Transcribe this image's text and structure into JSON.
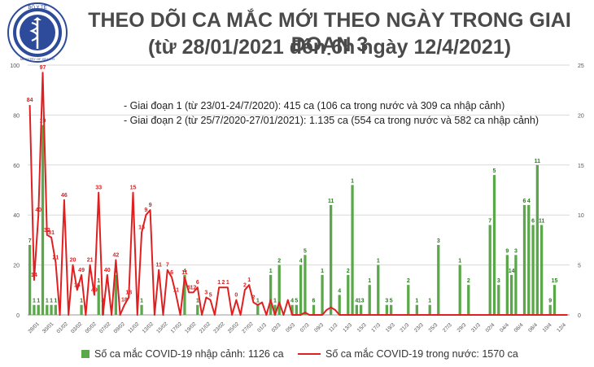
{
  "header": {
    "title": "THEO DÕI CA MẮC MỚI THEO NGÀY TRONG GIAI ĐOẠN 3",
    "subtitle": "(từ 28/01/2021 đến 6h ngày 12/4/2021)",
    "logo_text": "BỘ Y TẾ",
    "logo_subtext": "MINISTRY OF HEALTH"
  },
  "notes": [
    "- Giai đoạn 1 (từ 23/01-24/7/2020): 415 ca (106 ca trong nước và 309 ca nhập cảnh)",
    "- Giai đoạn 2 (từ 25/7/2020-27/01/2021): 1.135 ca (554 ca trong nước và 582 ca nhập cảnh)"
  ],
  "legend": {
    "bar_label": "Số ca mắc COVID-19 nhập cảnh: 1126 ca",
    "line_label": "Số ca mắc COVID-19 trong nước: 1570 ca"
  },
  "colors": {
    "bar": "#5aa84a",
    "line": "#e02020",
    "text": "#4a4a4a",
    "grid": "#d9d9d9"
  },
  "chart_data": {
    "type": "bar+line",
    "grid": true,
    "ylim_left": [
      0,
      100
    ],
    "yticks_left": [
      0,
      20,
      40,
      60,
      80,
      100
    ],
    "ylim_right": [
      0,
      25
    ],
    "yticks_right": [
      0,
      5,
      10,
      15,
      20,
      25
    ],
    "start_date": "28/01",
    "xtick_labels": [
      "28/01",
      "30/01",
      "01/02",
      "03/02",
      "05/02",
      "07/02",
      "09/02",
      "11/02",
      "13/02",
      "15/02",
      "17/02",
      "19/02",
      "21/02",
      "23/02",
      "25/02",
      "27/02",
      "01/3",
      "03/3",
      "05/3",
      "07/3",
      "09/3",
      "11/3",
      "13/3",
      "15/3",
      "17/3",
      "19/3",
      "21/3",
      "23/3",
      "25/3",
      "27/3",
      "29/3",
      "31/3",
      "02/4",
      "04/4",
      "06/4",
      "08/4",
      "10/4",
      "12/4"
    ],
    "series": [
      {
        "name": "Số ca mắc COVID-19 nhập cảnh: 1126 ca",
        "type": "bar",
        "axis": "right",
        "values": [
          7,
          1,
          1,
          19,
          1,
          1,
          1,
          0,
          0,
          0,
          0,
          0,
          1,
          0,
          0,
          0,
          3,
          1,
          0,
          0,
          4,
          0,
          0,
          0,
          0,
          0,
          1,
          0,
          0,
          0,
          0,
          0,
          0,
          0,
          0,
          0,
          4,
          0,
          0,
          1,
          0,
          0,
          0,
          0,
          0,
          0,
          0,
          0,
          0,
          0,
          0,
          0,
          0,
          1,
          0,
          0,
          4,
          1,
          5,
          0,
          0,
          1,
          1,
          5,
          6,
          0,
          1,
          0,
          4,
          0,
          11,
          0,
          2,
          0,
          4,
          13,
          1,
          1,
          0,
          3,
          0,
          5,
          0,
          1,
          1,
          0,
          0,
          0,
          3,
          0,
          1,
          0,
          0,
          1,
          0,
          7,
          0,
          0,
          0,
          0,
          5,
          0,
          3,
          0,
          0,
          0,
          0,
          9,
          14,
          3,
          0,
          6,
          4,
          6,
          0,
          11,
          11,
          9,
          15,
          9,
          0,
          1,
          3
        ]
      },
      {
        "name": "Số ca mắc COVID-19 trong nước: 1570 ca",
        "type": "line",
        "axis": "left",
        "values": [
          84,
          14,
          40,
          97,
          32,
          31,
          21,
          0,
          46,
          0,
          20,
          10,
          16,
          0,
          20,
          8,
          49,
          0,
          16,
          0,
          22,
          0,
          4,
          7,
          49,
          0,
          33,
          40,
          42,
          0,
          18,
          0,
          18,
          15,
          8,
          0,
          15,
          9,
          9,
          11,
          0,
          7,
          6,
          0,
          11,
          11,
          11,
          0,
          6,
          0,
          10,
          12,
          5,
          4,
          5,
          0,
          6,
          0,
          5,
          0,
          6,
          0,
          0,
          0,
          1,
          0,
          0,
          0,
          0,
          2,
          3,
          2,
          0,
          0,
          0,
          0,
          0,
          0,
          0,
          0,
          0,
          0,
          0,
          0,
          0,
          0,
          0,
          0,
          0,
          0,
          0,
          0,
          0,
          0,
          0,
          0,
          0,
          0,
          0,
          0,
          0,
          0,
          0,
          0,
          0,
          0,
          0,
          0,
          0,
          0,
          0,
          0,
          0,
          0,
          0,
          0,
          0,
          0,
          0,
          0,
          0,
          0,
          0,
          0,
          0,
          0
        ]
      }
    ],
    "bar_labels": [
      "7",
      "1",
      "1",
      "19",
      "1",
      "1",
      "1",
      "1",
      "1",
      "4",
      "1",
      "1",
      "4",
      "1",
      "1",
      "1",
      "1",
      "2",
      "4",
      "5",
      "4",
      "5",
      "6",
      "1",
      "11",
      "4",
      "2",
      "1",
      "4",
      "13",
      "1",
      "1",
      "3",
      "5",
      "2",
      "1",
      "1",
      "3",
      "1",
      "2",
      "7",
      "5",
      "3",
      "9",
      "14",
      "3",
      "6",
      "4",
      "6",
      "11",
      "11",
      "9",
      "15",
      "9",
      "1",
      "3"
    ],
    "line_labels": [
      "84",
      "14",
      "40",
      "97",
      "32",
      "31",
      "21",
      "46",
      "20",
      "16",
      "49",
      "21",
      "49",
      "33",
      "40",
      "42",
      "18",
      "18",
      "15",
      "15",
      "9",
      "9",
      "11",
      "7",
      "6",
      "11",
      "11",
      "6",
      "12",
      "6",
      "3",
      "5",
      "1",
      "2",
      "1",
      "0",
      "2",
      "1",
      "2"
    ]
  }
}
